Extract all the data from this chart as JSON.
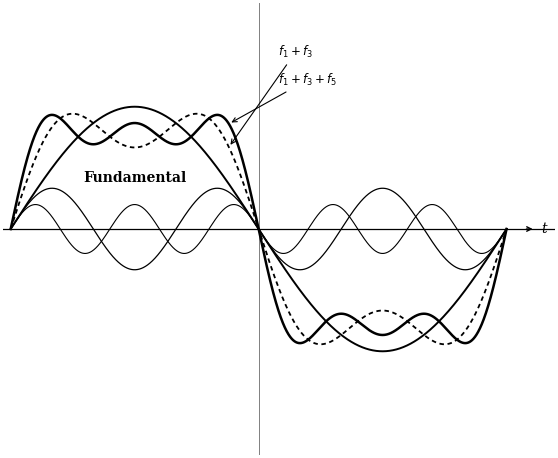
{
  "background_color": "#ffffff",
  "fundamental_label": "Fundamental",
  "annotation1": "$f_1 + f_3$",
  "annotation2": "$f_1 + f_3 + f_5$",
  "xlabel": "t",
  "xlim": [
    0,
    6.5
  ],
  "ylim": [
    -1.85,
    1.85
  ],
  "amplitude_f1": 1.0,
  "amplitude_f3": 0.3333,
  "amplitude_f5": 0.2,
  "pi": 3.14159265358979
}
